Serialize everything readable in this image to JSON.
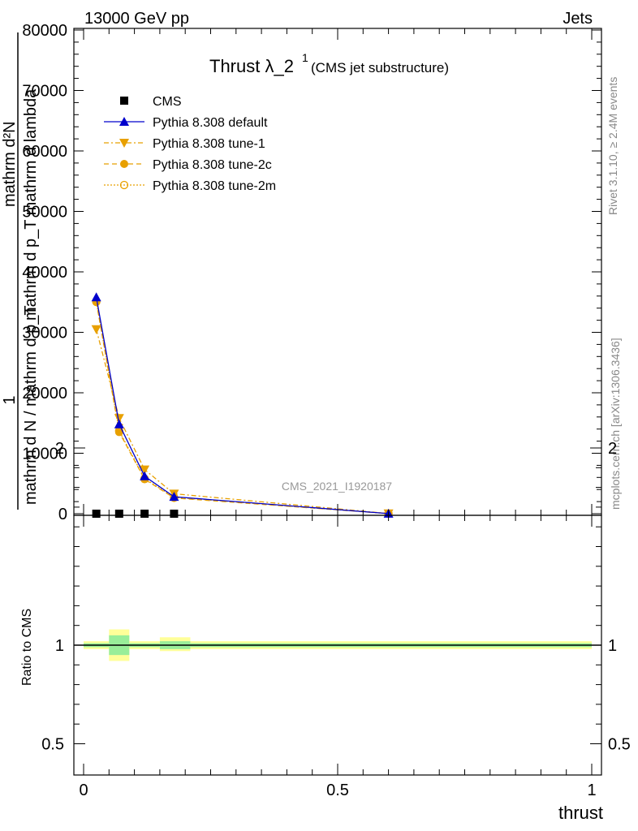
{
  "header": {
    "left": "13000 GeV pp",
    "right": "Jets"
  },
  "side_text": {
    "rivet": "Rivet 3.1.10, ≥ 2.4M events",
    "mcplots": "mcplots.cern.ch [arXiv:1306.3436]"
  },
  "main": {
    "title_main": "Thrust λ_2",
    "title_sup": "1",
    "title_sub": "(CMS jet substructure)",
    "watermark": "CMS_2021_I1920187",
    "ylabel_top": "mathrm d²N",
    "ylabel_top2": "mathrm d p_T mathrm d lambda",
    "ylabel_bottom": "mathrm d N / mathrm d p_T",
    "ylabel_one": "1"
  },
  "ratio": {
    "ylabel": "Ratio to CMS"
  },
  "colors": {
    "cms": "#000000",
    "default": "#0000cc",
    "tune": "#e8a000",
    "band_inner": "#99ee99",
    "band_outer": "#ffff99"
  },
  "chart_data": [
    {
      "type": "line",
      "xlabel": "thrust",
      "xlim": [
        0,
        1
      ],
      "ylim": [
        0,
        80000
      ],
      "x_ticks": [
        "0",
        "0.5",
        "1"
      ],
      "y_ticks": [
        "0",
        "10000",
        "20000",
        "30000",
        "40000",
        "50000",
        "60000",
        "70000",
        "80000"
      ],
      "legend_position": "top-left",
      "series": [
        {
          "name": "CMS",
          "style": "square",
          "x": [
            0.025,
            0.07,
            0.12,
            0.178
          ],
          "values": [
            0,
            0,
            0,
            0
          ]
        },
        {
          "name": "Pythia 8.308 default",
          "style": "triangle-up",
          "x": [
            0.025,
            0.07,
            0.12,
            0.178,
            0.6
          ],
          "values": [
            35800,
            14800,
            6200,
            2800,
            20
          ]
        },
        {
          "name": "Pythia 8.308 tune-1",
          "style": "triangle-down",
          "x": [
            0.025,
            0.07,
            0.12,
            0.178,
            0.6
          ],
          "values": [
            30500,
            15800,
            7300,
            3300,
            30
          ]
        },
        {
          "name": "Pythia 8.308 tune-2c",
          "style": "circle-filled",
          "x": [
            0.025,
            0.07,
            0.12,
            0.178,
            0.6
          ],
          "values": [
            35000,
            13500,
            5700,
            2600,
            20
          ]
        },
        {
          "name": "Pythia 8.308 tune-2m",
          "style": "circle-open",
          "x": [
            0.025,
            0.07,
            0.12,
            0.178,
            0.6
          ],
          "values": [
            35100,
            13700,
            5800,
            2700,
            20
          ]
        }
      ]
    },
    {
      "type": "area",
      "ylabel": "Ratio to CMS",
      "xlim": [
        0,
        1
      ],
      "ylim": [
        0.4,
        2.25
      ],
      "y_ticks": [
        "0.5",
        "1",
        "2"
      ],
      "series": [
        {
          "name": "CMS",
          "bins": [
            {
              "x_low": 0.0,
              "x_high": 0.05,
              "outer": [
                0.98,
                1.02
              ],
              "inner": [
                0.99,
                1.01
              ]
            },
            {
              "x_low": 0.05,
              "x_high": 0.09,
              "outer": [
                0.92,
                1.08
              ],
              "inner": [
                0.95,
                1.05
              ]
            },
            {
              "x_low": 0.09,
              "x_high": 0.15,
              "outer": [
                0.98,
                1.02
              ],
              "inner": [
                0.99,
                1.01
              ]
            },
            {
              "x_low": 0.15,
              "x_high": 0.21,
              "outer": [
                0.97,
                1.04
              ],
              "inner": [
                0.98,
                1.02
              ]
            },
            {
              "x_low": 0.21,
              "x_high": 1.0,
              "outer": [
                0.98,
                1.02
              ],
              "inner": [
                0.99,
                1.01
              ]
            }
          ]
        }
      ]
    }
  ]
}
